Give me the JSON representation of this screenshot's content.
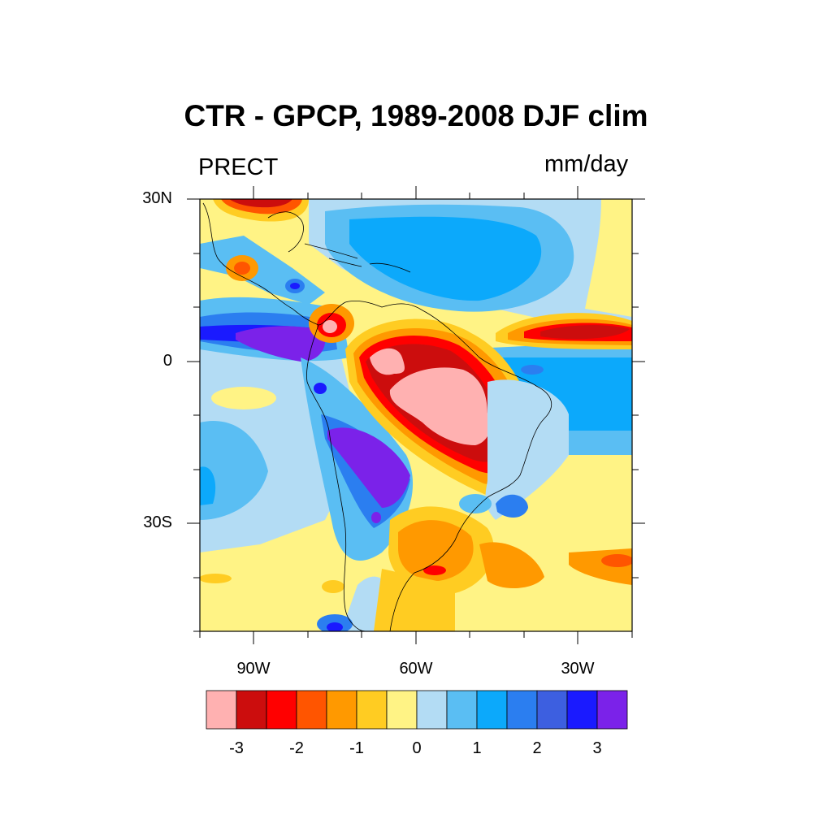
{
  "title": "CTR - GPCP, 1989-2008 DJF clim",
  "left_string": "PRECT",
  "right_string": "mm/day",
  "lat_labels": [
    "30N",
    "0",
    "30S"
  ],
  "lon_labels": [
    "90W",
    "60W",
    "30W"
  ],
  "colorbar": {
    "labels": [
      "-3",
      "-2",
      "-1",
      "0",
      "1",
      "2",
      "3"
    ],
    "colors": [
      "#ffb1b1",
      "#cc0d0d",
      "#ff0000",
      "#ff5500",
      "#ff9900",
      "#ffcc22",
      "#fff385",
      "#b3dcf4",
      "#5abef3",
      "#0ca9fb",
      "#2b7ef0",
      "#3d5fe0",
      "#1a1aff",
      "#7b22e9"
    ]
  }
}
